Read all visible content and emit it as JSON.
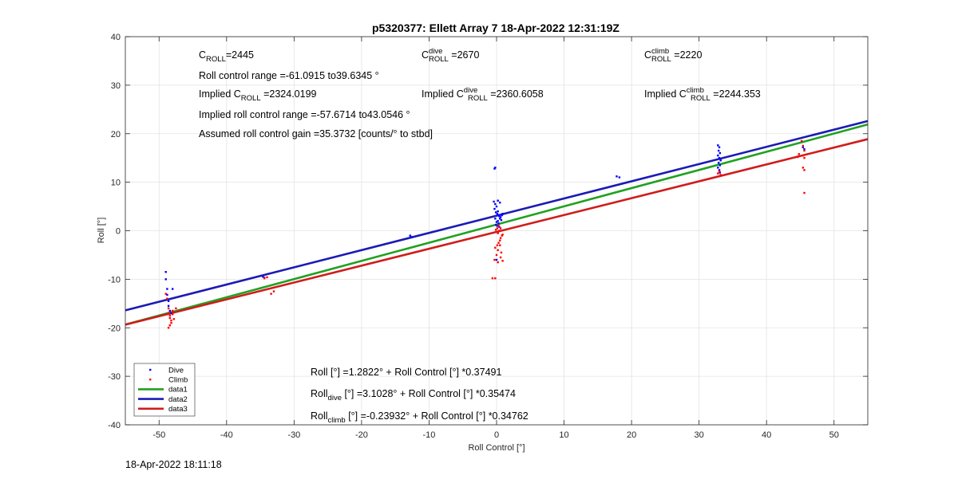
{
  "chart_data": {
    "type": "scatter",
    "title": "p5320377: Ellett Array 7 18-Apr-2022 12:31:19Z",
    "xlabel": "Roll Control [°]",
    "ylabel": "Roll [°]",
    "xlim": [
      -55,
      55
    ],
    "ylim": [
      -40,
      40
    ],
    "xticks": [
      -50,
      -40,
      -30,
      -20,
      -10,
      0,
      10,
      20,
      30,
      40,
      50
    ],
    "yticks": [
      -40,
      -30,
      -20,
      -10,
      0,
      10,
      20,
      30,
      40
    ],
    "grid": true,
    "legend_position": "bottom-left",
    "series": [
      {
        "name": "Dive",
        "kind": "points",
        "color": "#0000ff",
        "points": [
          [
            -49.0,
            -8.5
          ],
          [
            -49.0,
            -10.0
          ],
          [
            -48.8,
            -12.0
          ],
          [
            -48.8,
            -13.2
          ],
          [
            -48.6,
            -14.5
          ],
          [
            -48.6,
            -15.5
          ],
          [
            -48.4,
            -16.5
          ],
          [
            -48.2,
            -17.0
          ],
          [
            -48.0,
            -12.0
          ],
          [
            -34.6,
            -9.5
          ],
          [
            -34.4,
            -9.7
          ],
          [
            -12.8,
            -1.0
          ],
          [
            -12.6,
            -1.3
          ],
          [
            -0.3,
            12.8
          ],
          [
            -0.2,
            13.0
          ],
          [
            -0.4,
            6.0
          ],
          [
            -0.2,
            5.5
          ],
          [
            0.0,
            5.0
          ],
          [
            -0.3,
            4.5
          ],
          [
            0.2,
            4.0
          ],
          [
            -0.1,
            3.8
          ],
          [
            0.1,
            3.5
          ],
          [
            0.3,
            3.2
          ],
          [
            0.4,
            3.0
          ],
          [
            0.6,
            2.8
          ],
          [
            0.8,
            3.2
          ],
          [
            -0.2,
            2.5
          ],
          [
            0.2,
            2.0
          ],
          [
            0.5,
            2.5
          ],
          [
            0.0,
            1.8
          ],
          [
            0.3,
            1.5
          ],
          [
            -0.1,
            1.2
          ],
          [
            0.1,
            1.0
          ],
          [
            0.4,
            0.8
          ],
          [
            0.7,
            2.2
          ],
          [
            0.9,
            3.5
          ],
          [
            0.2,
            6.2
          ],
          [
            0.5,
            5.8
          ],
          [
            0.0,
            -6.0
          ],
          [
            17.8,
            11.2
          ],
          [
            18.2,
            11.0
          ],
          [
            32.8,
            17.6
          ],
          [
            33.0,
            17.2
          ],
          [
            32.9,
            16.5
          ],
          [
            33.1,
            16.0
          ],
          [
            32.8,
            15.5
          ],
          [
            33.0,
            15.0
          ],
          [
            33.2,
            14.5
          ],
          [
            32.9,
            14.0
          ],
          [
            33.1,
            13.5
          ],
          [
            32.8,
            13.0
          ],
          [
            33.0,
            12.5
          ],
          [
            33.1,
            12.0
          ],
          [
            45.4,
            17.2
          ],
          [
            45.6,
            16.8
          ]
        ]
      },
      {
        "name": "Climb",
        "kind": "points",
        "color": "#ff0000",
        "points": [
          [
            -49.0,
            -13.0
          ],
          [
            -48.8,
            -14.0
          ],
          [
            -48.6,
            -16.0
          ],
          [
            -48.6,
            -17.0
          ],
          [
            -48.4,
            -17.5
          ],
          [
            -48.4,
            -18.0
          ],
          [
            -48.2,
            -18.5
          ],
          [
            -48.2,
            -19.0
          ],
          [
            -48.4,
            -19.5
          ],
          [
            -48.6,
            -20.0
          ],
          [
            -48.0,
            -17.2
          ],
          [
            -47.8,
            -18.2
          ],
          [
            -48.0,
            -16.5
          ],
          [
            -47.5,
            -16.0
          ],
          [
            -34.4,
            -9.8
          ],
          [
            -34.0,
            -9.6
          ],
          [
            -33.0,
            -12.5
          ],
          [
            -33.4,
            -13.0
          ],
          [
            -0.6,
            -9.8
          ],
          [
            -0.2,
            -9.8
          ],
          [
            -0.3,
            -6.0
          ],
          [
            0.0,
            -5.0
          ],
          [
            0.2,
            -4.0
          ],
          [
            -0.2,
            -3.5
          ],
          [
            0.1,
            -3.0
          ],
          [
            0.3,
            -2.5
          ],
          [
            0.5,
            -2.0
          ],
          [
            0.6,
            -1.5
          ],
          [
            0.8,
            -1.0
          ],
          [
            0.2,
            -0.5
          ],
          [
            0.4,
            0.0
          ],
          [
            -0.1,
            0.2
          ],
          [
            0.1,
            0.5
          ],
          [
            0.3,
            1.0
          ],
          [
            0.6,
            0.5
          ],
          [
            0.9,
            -0.8
          ],
          [
            0.5,
            -3.0
          ],
          [
            0.7,
            -4.5
          ],
          [
            0.2,
            -6.5
          ],
          [
            0.6,
            -5.5
          ],
          [
            0.9,
            -6.2
          ],
          [
            32.8,
            11.8
          ],
          [
            33.0,
            12.2
          ],
          [
            33.2,
            11.5
          ],
          [
            45.2,
            18.5
          ],
          [
            45.4,
            17.5
          ],
          [
            45.6,
            16.5
          ],
          [
            45.4,
            15.5
          ],
          [
            45.6,
            15.0
          ],
          [
            45.4,
            13.0
          ],
          [
            45.6,
            12.5
          ],
          [
            45.6,
            7.8
          ],
          [
            44.8,
            15.8
          ],
          [
            44.6,
            15.2
          ]
        ]
      },
      {
        "name": "data1",
        "kind": "line",
        "color": "#21a121",
        "intercept": 1.2822,
        "slope": 0.37491
      },
      {
        "name": "data2",
        "kind": "line",
        "color": "#1b1bb5",
        "intercept": 3.1028,
        "slope": 0.35474
      },
      {
        "name": "data3",
        "kind": "line",
        "color": "#d01c1c",
        "intercept": -0.23932,
        "slope": 0.34762
      }
    ],
    "annotations": {
      "c_roll": {
        "label": "C",
        "sub": "ROLL",
        "value": "=2445"
      },
      "c_roll_dive": {
        "label": "C",
        "sup": "dive",
        "sub": "ROLL",
        "value": " =2670"
      },
      "c_roll_climb": {
        "label": "C",
        "sup": "climb",
        "sub": "ROLL",
        "value": " =2220"
      },
      "roll_range": "Roll control range =-61.0915 to39.6345 °",
      "implied_c_roll": {
        "pre": "Implied C",
        "sub": "ROLL",
        "value": " =2324.0199"
      },
      "implied_c_roll_dive": {
        "pre": "Implied C",
        "sup": "dive",
        "sub": "ROLL",
        "value": " =2360.6058"
      },
      "implied_c_roll_climb": {
        "pre": "Implied C",
        "sup": "climb",
        "sub": "ROLL",
        "value": " =2244.353"
      },
      "implied_range": "Implied roll control range =-57.6714 to43.0546 °",
      "gain": "Assumed roll control gain =35.3732 [counts/° to stbd]",
      "fit_all": "Roll [°] =1.2822° + Roll Control [°] *0.37491",
      "fit_dive": {
        "pre": "Roll",
        "sub": "dive",
        "post": " [°] =3.1028° + Roll Control [°] *0.35474"
      },
      "fit_climb": {
        "pre": "Roll",
        "sub": "climb",
        "post": " [°] =-0.23932° + Roll Control [°] *0.34762"
      }
    }
  },
  "timestamp": "18-Apr-2022 18:11:18"
}
